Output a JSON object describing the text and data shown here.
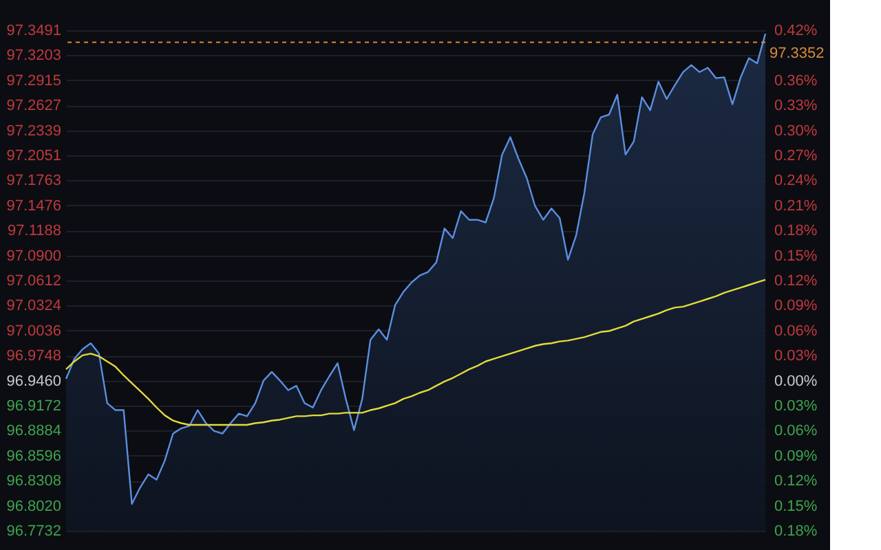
{
  "chart_data": {
    "type": "area",
    "categories": [
      null,
      null,
      null,
      null,
      null,
      null,
      null,
      null,
      null,
      null,
      null,
      null,
      null,
      null,
      null,
      null,
      null,
      null,
      null,
      null,
      null,
      null,
      null,
      null,
      null,
      null,
      null,
      null,
      null,
      null,
      null,
      null,
      null,
      null,
      null,
      null,
      null,
      null,
      null,
      null,
      null,
      null,
      null,
      null,
      null,
      null,
      null,
      null,
      null,
      null,
      null,
      null,
      null,
      null,
      null,
      null,
      null,
      null,
      null,
      null,
      null,
      null,
      null,
      null,
      null,
      null,
      null,
      null,
      null,
      null,
      null,
      null,
      null,
      null,
      null,
      null,
      null,
      null,
      null,
      null,
      null,
      null,
      null,
      null,
      null,
      null
    ],
    "series": [
      {
        "type": "area",
        "color": "#5b8fe0",
        "values": [
          96.948,
          96.971,
          96.982,
          96.989,
          96.977,
          96.92,
          96.912,
          96.912,
          96.804,
          96.823,
          96.838,
          96.832,
          96.854,
          96.885,
          96.891,
          96.894,
          96.912,
          96.897,
          96.888,
          96.885,
          96.897,
          96.908,
          96.905,
          96.92,
          96.946,
          96.956,
          96.946,
          96.935,
          96.94,
          96.92,
          96.915,
          96.935,
          96.951,
          96.966,
          96.925,
          96.889,
          96.925,
          96.993,
          97.005,
          96.993,
          97.033,
          97.048,
          97.059,
          97.067,
          97.071,
          97.082,
          97.121,
          97.11,
          97.141,
          97.131,
          97.131,
          97.128,
          97.156,
          97.206,
          97.226,
          97.201,
          97.179,
          97.147,
          97.131,
          97.144,
          97.133,
          97.085,
          97.113,
          97.162,
          97.229,
          97.249,
          97.252,
          97.275,
          97.206,
          97.221,
          97.272,
          97.257,
          97.29,
          97.27,
          97.286,
          97.301,
          97.309,
          97.301,
          97.306,
          97.294,
          97.295,
          97.264,
          97.295,
          97.317,
          97.311,
          97.345
        ]
      },
      {
        "type": "line",
        "color": "#e3dc3c",
        "values": [
          96.959,
          96.968,
          96.975,
          96.977,
          96.974,
          96.968,
          96.962,
          96.952,
          96.943,
          96.934,
          96.925,
          96.915,
          96.906,
          96.9,
          96.897,
          96.895,
          96.895,
          96.895,
          96.895,
          96.895,
          96.895,
          96.895,
          96.895,
          96.897,
          96.898,
          96.9,
          96.901,
          96.903,
          96.905,
          96.905,
          96.906,
          96.906,
          96.908,
          96.908,
          96.909,
          96.909,
          96.909,
          96.912,
          96.914,
          96.917,
          96.92,
          96.925,
          96.928,
          96.932,
          96.935,
          96.94,
          96.945,
          96.949,
          96.954,
          96.959,
          96.963,
          96.968,
          96.971,
          96.974,
          96.977,
          96.98,
          96.983,
          96.986,
          96.988,
          96.989,
          96.991,
          96.992,
          96.994,
          96.996,
          96.999,
          97.002,
          97.003,
          97.006,
          97.009,
          97.014,
          97.017,
          97.02,
          97.023,
          97.027,
          97.03,
          97.031,
          97.034,
          97.037,
          97.04,
          97.043,
          97.047,
          97.05,
          97.053,
          97.056,
          97.059,
          97.062
        ]
      }
    ],
    "ylim": [
      96.7732,
      97.3491
    ],
    "yticks": [
      97.3491,
      97.3203,
      97.2915,
      97.2627,
      97.2339,
      97.2051,
      97.1763,
      97.1476,
      97.1188,
      {
        "value": 97.09,
        "label": "97.0900"
      },
      97.0612,
      97.0324,
      97.0036,
      96.9748,
      {
        "value": 96.946,
        "label": "96.9460"
      },
      96.9172,
      96.8884,
      96.8596,
      96.8308,
      {
        "value": 96.802,
        "label": "96.8020"
      },
      96.7732
    ],
    "y2lim": [
      -0.18,
      0.42
    ],
    "y2ticks": [
      {
        "value": 0.42,
        "label": "0.42%"
      },
      {
        "value": 0.36,
        "label": "0.36%"
      },
      {
        "value": 0.33,
        "label": "0.33%"
      },
      {
        "value": 0.3,
        "label": "0.30%"
      },
      {
        "value": 0.27,
        "label": "0.27%"
      },
      {
        "value": 0.24,
        "label": "0.24%"
      },
      {
        "value": 0.21,
        "label": "0.21%"
      },
      {
        "value": 0.18,
        "label": "0.18%"
      },
      {
        "value": 0.15,
        "label": "0.15%"
      },
      {
        "value": 0.12,
        "label": "0.12%"
      },
      {
        "value": 0.09,
        "label": "0.09%"
      },
      {
        "value": 0.06,
        "label": "0.06%"
      },
      {
        "value": 0.03,
        "label": "0.03%"
      },
      {
        "value": 0,
        "label": "0.00%"
      },
      {
        "value": -0.03,
        "label": "0.03%"
      },
      {
        "value": -0.06,
        "label": "0.06%"
      },
      {
        "value": -0.09,
        "label": "0.09%"
      },
      {
        "value": -0.12,
        "label": "0.12%"
      },
      {
        "value": -0.15,
        "label": "0.15%"
      },
      {
        "value": -0.18,
        "label": "0.18%"
      }
    ],
    "ref_lines": [
      {
        "axis": "y",
        "value": 97.3352,
        "label": "97.3352",
        "color": "#d98a3a",
        "line_style": "dashed"
      }
    ],
    "grid": true,
    "legend": false
  }
}
